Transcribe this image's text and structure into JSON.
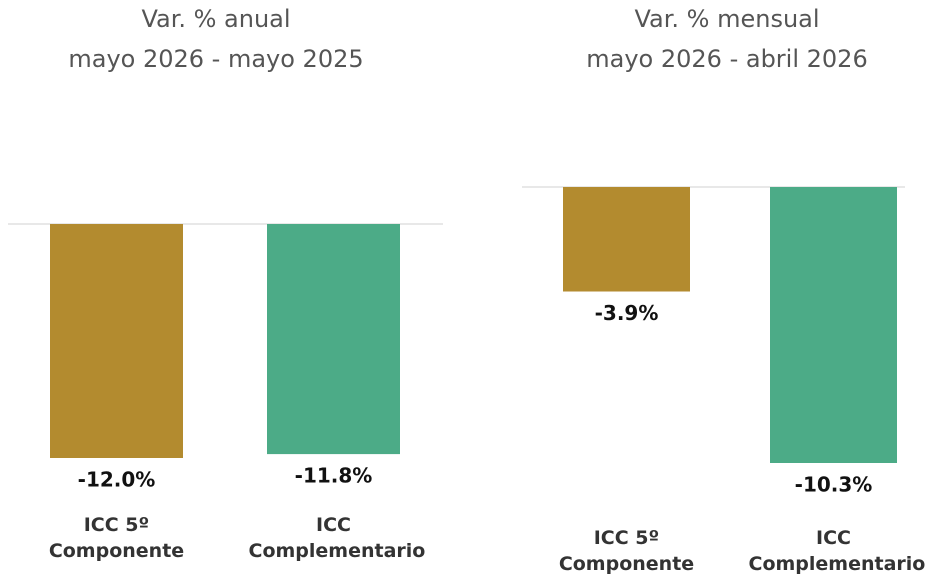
{
  "chart_data": [
    {
      "type": "bar",
      "title": "Var. % anual",
      "subtitle": "mayo 2026 -  mayo 2025",
      "categories": [
        "ICC 5º Componente",
        "ICC Complementario"
      ],
      "values": [
        -12.0,
        -11.8
      ],
      "value_labels": [
        "-12.0%",
        "-11.8%"
      ],
      "colors": [
        "#b38b2f",
        "#4cab87"
      ]
    },
    {
      "type": "bar",
      "title": "Var. % mensual",
      "subtitle": "mayo 2026 - abril 2026",
      "categories": [
        "ICC 5º Componente",
        "ICC Complementario"
      ],
      "values": [
        -3.9,
        -10.3
      ],
      "value_labels": [
        "-3.9%",
        "-10.3%"
      ],
      "colors": [
        "#b38b2f",
        "#4cab87"
      ]
    }
  ]
}
